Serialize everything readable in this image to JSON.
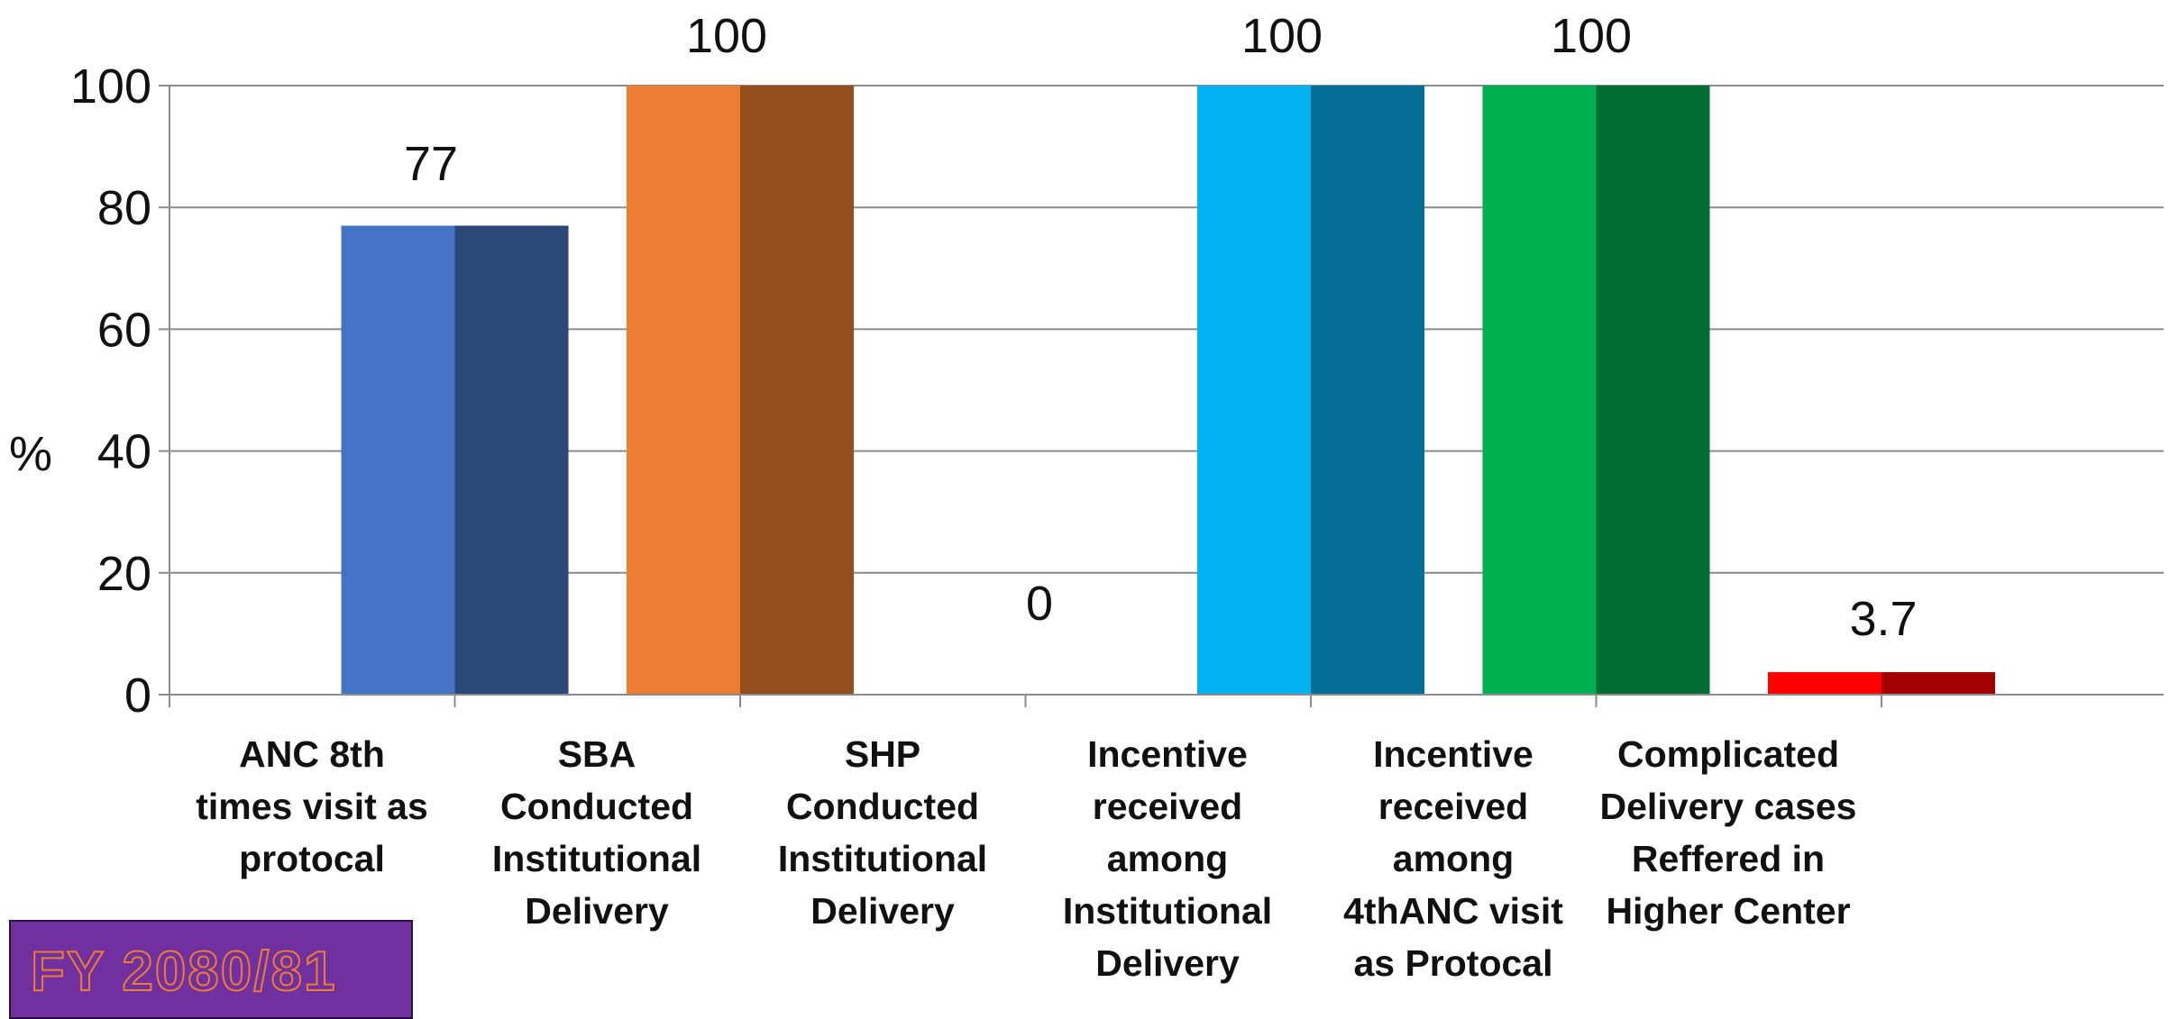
{
  "chart_data": {
    "type": "bar",
    "ylabel": "%",
    "ylim": [
      0,
      100
    ],
    "yticks": [
      "0",
      "20",
      "40",
      "60",
      "80",
      "100"
    ],
    "grid": true,
    "categories": [
      "ANC 8th times visit as protocal",
      "SBA Conducted Institutional Delivery",
      "SHP Conducted Institutional Delivery",
      "Incentive received among Institutional Delivery",
      "Incentive received among 4thANC visit as Protocal",
      "Complicated Delivery cases Reffered in Higher Center"
    ],
    "category_lines": [
      [
        "ANC 8th",
        "times visit as",
        "protocal"
      ],
      [
        "SBA",
        "Conducted",
        "Institutional",
        "Delivery"
      ],
      [
        "SHP",
        "Conducted",
        "Institutional",
        "Delivery"
      ],
      [
        "Incentive",
        "received",
        "among",
        "Institutional",
        "Delivery"
      ],
      [
        "Incentive",
        "received",
        "among",
        "4thANC visit",
        "as Protocal"
      ],
      [
        "Complicated",
        "Delivery cases",
        "Reffered in",
        "Higher Center"
      ]
    ],
    "values": [
      77,
      100,
      0,
      100,
      100,
      3.7
    ],
    "data_labels": [
      "77",
      "100",
      "0",
      "100",
      "100",
      "3.7"
    ],
    "colors": [
      [
        "#4472c4",
        "#2a477a"
      ],
      [
        "#ed7d31",
        "#964d1e"
      ],
      [
        "#a5a5a5",
        "#666666"
      ],
      [
        "#00b0f0",
        "#026e96"
      ],
      [
        "#00b050",
        "#006e32"
      ],
      [
        "#ff0000",
        "#a00000"
      ]
    ]
  },
  "badge": {
    "text": "FY 2080/81"
  }
}
